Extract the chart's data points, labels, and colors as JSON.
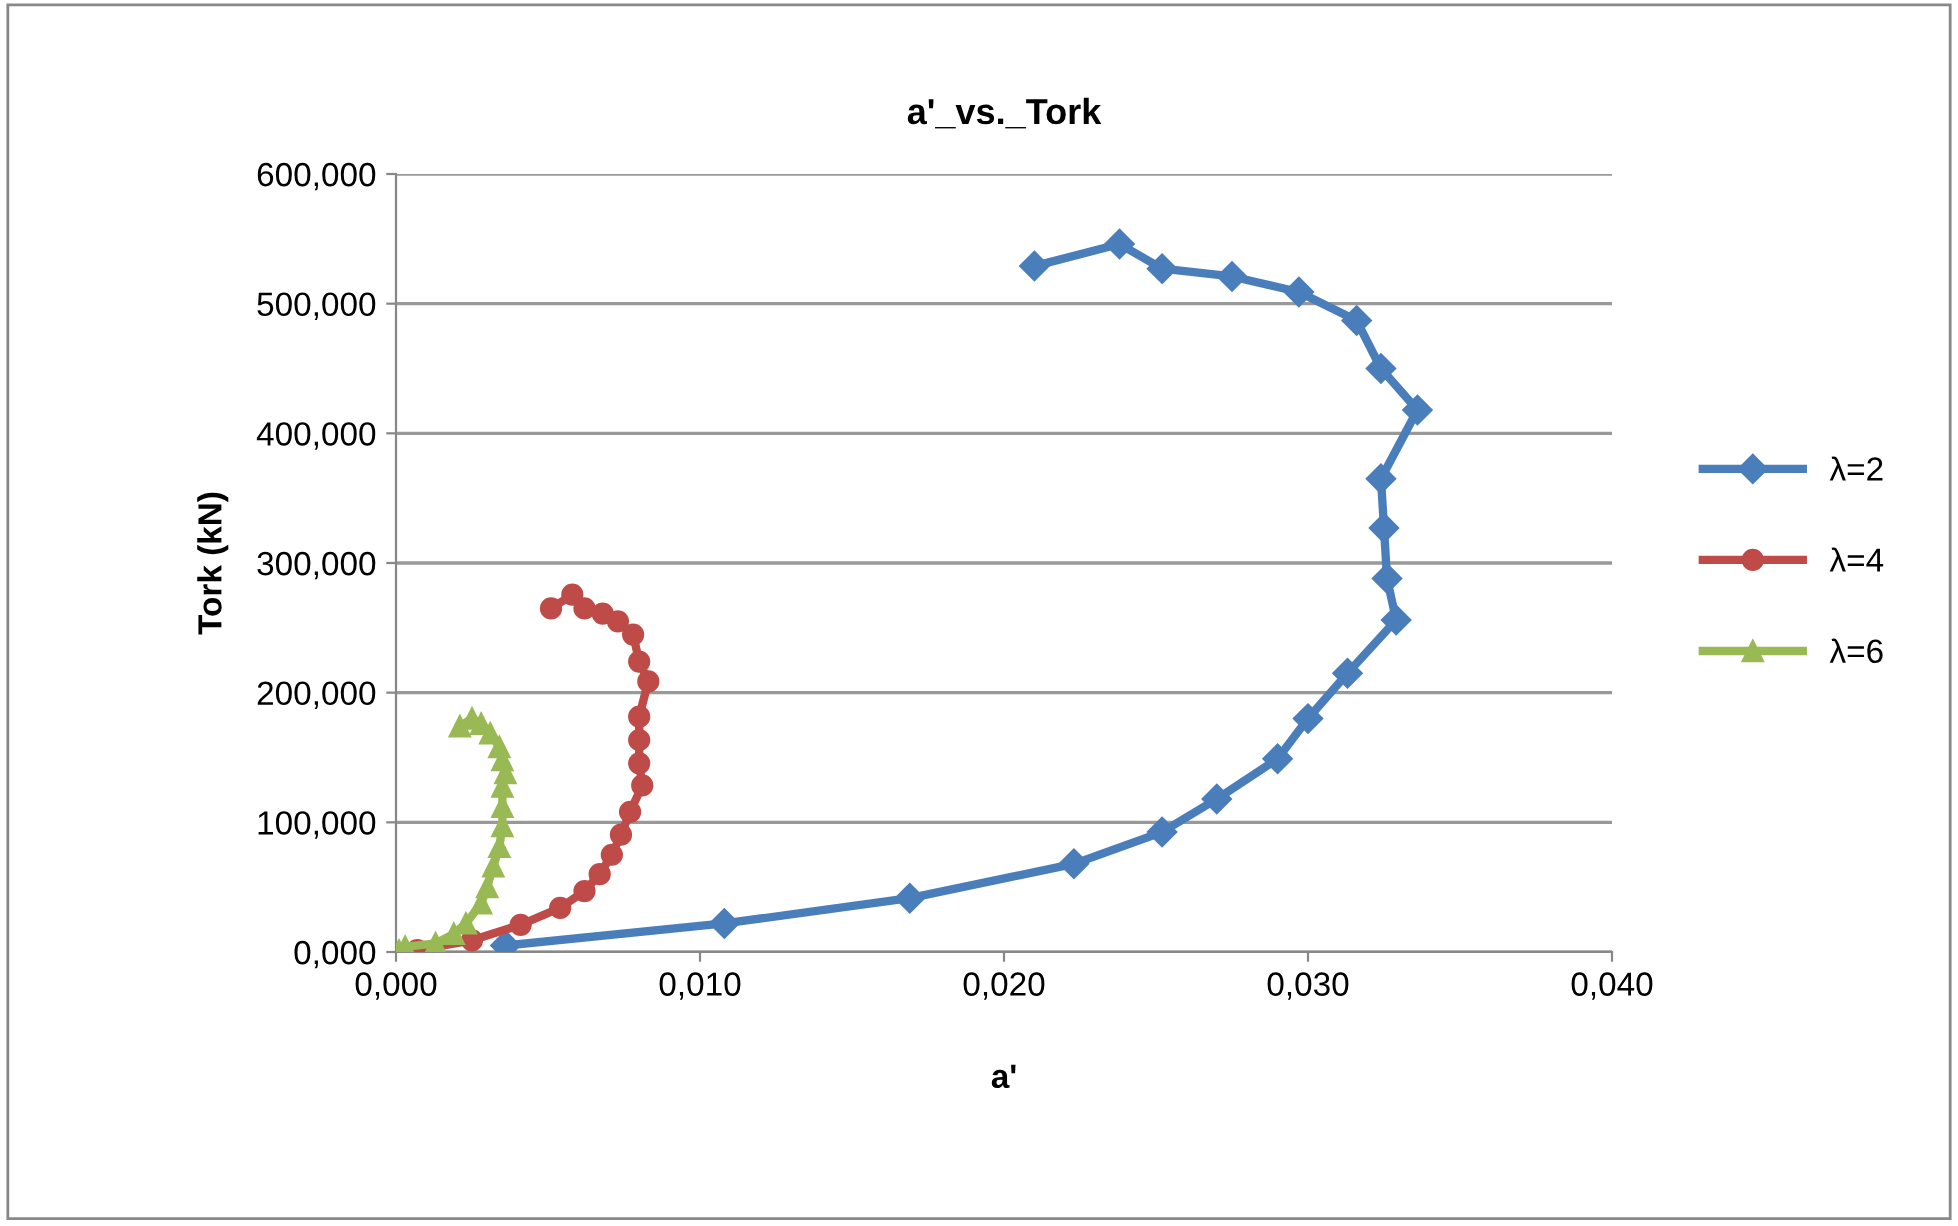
{
  "chart_data": {
    "type": "line",
    "title": "a'_vs._Tork",
    "xlabel": "a'",
    "ylabel": "Tork (kN)",
    "xlim": [
      0,
      0.04
    ],
    "xticks": [
      {
        "value": 0,
        "label": "0,000"
      },
      {
        "value": 0.01,
        "label": "0,010"
      },
      {
        "value": 0.02,
        "label": "0,020"
      },
      {
        "value": 0.03,
        "label": "0,030"
      },
      {
        "value": 0.04,
        "label": "0,040"
      }
    ],
    "ylim": [
      0,
      600
    ],
    "yticks": [
      {
        "value": 0,
        "label": "0,000"
      },
      {
        "value": 100,
        "label": "100,000"
      },
      {
        "value": 200,
        "label": "200,000"
      },
      {
        "value": 300,
        "label": "300,000"
      },
      {
        "value": 400,
        "label": "400,000"
      },
      {
        "value": 500,
        "label": "500,000"
      },
      {
        "value": 600,
        "label": "600,000"
      }
    ],
    "grid": "y",
    "legend": "right",
    "line_style": "solid",
    "series": [
      {
        "name": "λ=2",
        "color": "#4a7ebb",
        "marker": "diamond",
        "x": [
          0.0036,
          0.0108,
          0.0169,
          0.0223,
          0.0252,
          0.027,
          0.029,
          0.03,
          0.0313,
          0.0329,
          0.0326,
          0.0325,
          0.0324,
          0.0336,
          0.0324,
          0.0316,
          0.0297,
          0.0275,
          0.0252,
          0.0238,
          0.021
        ],
        "values": [
          5,
          22,
          41.5,
          68,
          92.5,
          118,
          149,
          180,
          215,
          256,
          288,
          327,
          365,
          418,
          450,
          487,
          509,
          521,
          527,
          546,
          529
        ]
      },
      {
        "name": "λ=4",
        "color": "#be4b48",
        "marker": "circle",
        "x": [
          0.0007,
          0.0025,
          0.0041,
          0.0054,
          0.0062,
          0.0067,
          0.0071,
          0.0074,
          0.0077,
          0.0081,
          0.008,
          0.008,
          0.008,
          0.0083,
          0.008,
          0.0078,
          0.0073,
          0.0068,
          0.0062,
          0.0058,
          0.0051
        ],
        "values": [
          1.5,
          9,
          21,
          34,
          47,
          60,
          75,
          90.5,
          108,
          128.5,
          145.5,
          163.5,
          181.5,
          208.7,
          224,
          244.8,
          255,
          261,
          265,
          275.6,
          265
        ]
      },
      {
        "name": "λ=6",
        "color": "#98b954",
        "marker": "triangle",
        "x": [
          0.0001,
          0.0003,
          0.0013,
          0.0019,
          0.0023,
          0.0028,
          0.003,
          0.0032,
          0.0034,
          0.0035,
          0.0035,
          0.0035,
          0.0036,
          0.0035,
          0.0034,
          0.0031,
          0.0028,
          0.0025,
          0.0021
        ],
        "values": [
          1,
          4,
          6.6,
          14,
          22,
          37.5,
          50,
          66,
          81,
          97,
          112,
          127.5,
          138,
          148,
          158,
          168.5,
          176,
          180,
          174
        ]
      }
    ]
  }
}
